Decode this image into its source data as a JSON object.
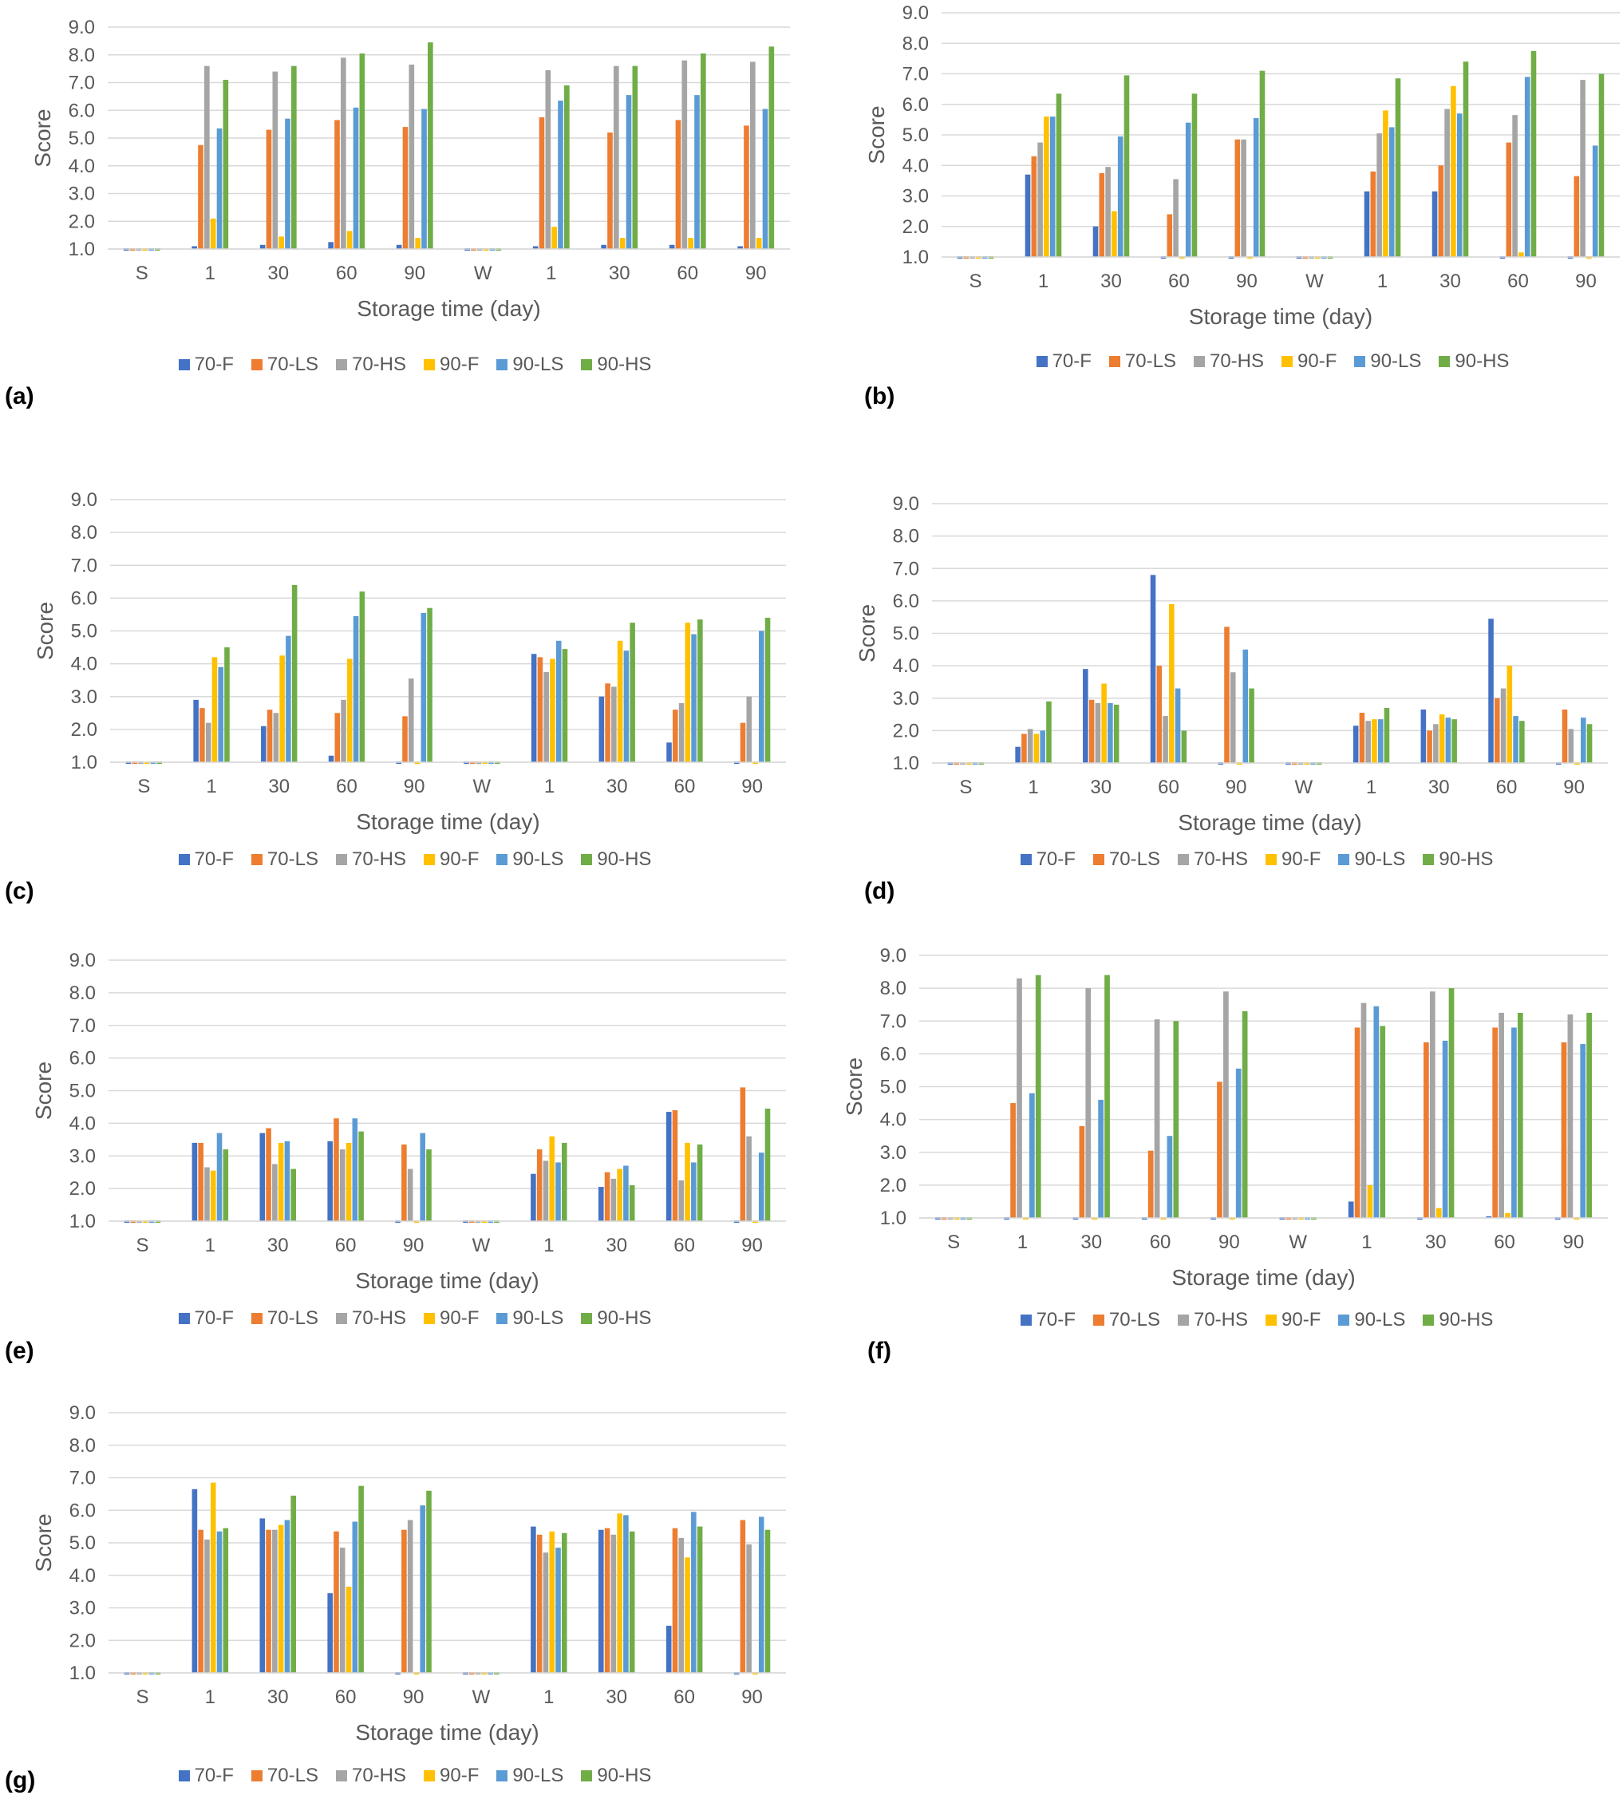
{
  "figure": {
    "colors": {
      "70-F": "#4472C4",
      "70-LS": "#ED7D31",
      "70-HS": "#A5A5A5",
      "90-F": "#FFC000",
      "90-LS": "#5B9BD5",
      "90-HS": "#70AD47"
    }
  },
  "chart_data": [
    {
      "panel_label": "(a)",
      "type": "bar",
      "categories": [
        "S",
        "1",
        "30",
        "60",
        "90",
        "W",
        "1",
        "30",
        "60",
        "90"
      ],
      "xlabel": "Storage time (day)",
      "ylabel": "Score",
      "ylim": [
        1.0,
        9.0
      ],
      "yticks": [
        "1.0",
        "2.0",
        "3.0",
        "4.0",
        "5.0",
        "6.0",
        "7.0",
        "8.0",
        "9.0"
      ],
      "grid": true,
      "legend_position": "bottom",
      "series": [
        {
          "name": "70-F",
          "values": [
            1.0,
            1.1,
            1.15,
            1.25,
            1.15,
            1.0,
            1.1,
            1.15,
            1.15,
            1.1
          ]
        },
        {
          "name": "70-LS",
          "values": [
            1.0,
            4.75,
            5.3,
            5.65,
            5.4,
            1.0,
            5.75,
            5.2,
            5.65,
            5.45
          ]
        },
        {
          "name": "70-HS",
          "values": [
            1.0,
            7.6,
            7.4,
            7.9,
            7.65,
            1.0,
            7.45,
            7.6,
            7.8,
            7.75
          ]
        },
        {
          "name": "90-F",
          "values": [
            1.0,
            2.1,
            1.45,
            1.65,
            1.4,
            1.0,
            1.8,
            1.4,
            1.4,
            1.4
          ]
        },
        {
          "name": "90-LS",
          "values": [
            1.0,
            5.35,
            5.7,
            6.1,
            6.05,
            1.0,
            6.35,
            6.55,
            6.55,
            6.05
          ]
        },
        {
          "name": "90-HS",
          "values": [
            1.0,
            7.1,
            7.6,
            8.05,
            8.45,
            1.0,
            6.9,
            7.6,
            8.05,
            8.3
          ]
        }
      ]
    },
    {
      "panel_label": "(b)",
      "type": "bar",
      "categories": [
        "S",
        "1",
        "30",
        "60",
        "90",
        "W",
        "1",
        "30",
        "60",
        "90"
      ],
      "xlabel": "Storage time (day)",
      "ylabel": "Score",
      "ylim": [
        1.0,
        9.0
      ],
      "yticks": [
        "1.0",
        "2.0",
        "3.0",
        "4.0",
        "5.0",
        "6.0",
        "7.0",
        "8.0",
        "9.0"
      ],
      "grid": true,
      "legend_position": "bottom",
      "series": [
        {
          "name": "70-F",
          "values": [
            1.0,
            3.7,
            2.0,
            1.05,
            1.0,
            1.0,
            3.15,
            3.15,
            1.05,
            1.0
          ]
        },
        {
          "name": "70-LS",
          "values": [
            1.0,
            4.3,
            3.75,
            2.4,
            4.85,
            1.0,
            3.8,
            4.0,
            4.75,
            3.65
          ]
        },
        {
          "name": "70-HS",
          "values": [
            1.0,
            4.75,
            3.95,
            3.55,
            4.85,
            1.0,
            5.05,
            5.85,
            5.65,
            6.8
          ]
        },
        {
          "name": "90-F",
          "values": [
            1.0,
            5.6,
            2.5,
            1.05,
            1.0,
            1.0,
            5.8,
            6.6,
            1.15,
            1.0
          ]
        },
        {
          "name": "90-LS",
          "values": [
            1.0,
            5.6,
            4.95,
            5.4,
            5.55,
            1.0,
            5.25,
            5.7,
            6.9,
            4.65
          ]
        },
        {
          "name": "90-HS",
          "values": [
            1.0,
            6.35,
            6.95,
            6.35,
            7.1,
            1.0,
            6.85,
            7.4,
            7.75,
            7.0
          ]
        }
      ]
    },
    {
      "panel_label": "(c)",
      "type": "bar",
      "categories": [
        "S",
        "1",
        "30",
        "60",
        "90",
        "W",
        "1",
        "30",
        "60",
        "90"
      ],
      "xlabel": "Storage time (day)",
      "ylabel": "Score",
      "ylim": [
        1.0,
        9.0
      ],
      "yticks": [
        "1.0",
        "2.0",
        "3.0",
        "4.0",
        "5.0",
        "6.0",
        "7.0",
        "8.0",
        "9.0"
      ],
      "grid": true,
      "legend_position": "bottom",
      "series": [
        {
          "name": "70-F",
          "values": [
            1.0,
            2.9,
            2.1,
            1.2,
            1.0,
            1.0,
            4.3,
            3.0,
            1.6,
            1.0
          ]
        },
        {
          "name": "70-LS",
          "values": [
            1.0,
            2.65,
            2.6,
            2.5,
            2.4,
            1.0,
            4.2,
            3.4,
            2.6,
            2.2
          ]
        },
        {
          "name": "70-HS",
          "values": [
            1.0,
            2.2,
            2.5,
            2.9,
            3.55,
            1.0,
            3.75,
            3.3,
            2.8,
            3.0
          ]
        },
        {
          "name": "90-F",
          "values": [
            1.0,
            4.2,
            4.25,
            4.15,
            1.0,
            1.0,
            4.15,
            4.7,
            5.25,
            1.0
          ]
        },
        {
          "name": "90-LS",
          "values": [
            1.0,
            3.9,
            4.85,
            5.45,
            5.55,
            1.0,
            4.7,
            4.4,
            4.9,
            5.0
          ]
        },
        {
          "name": "90-HS",
          "values": [
            1.0,
            4.5,
            6.4,
            6.2,
            5.7,
            1.0,
            4.45,
            5.25,
            5.35,
            5.4
          ]
        }
      ]
    },
    {
      "panel_label": "(d)",
      "type": "bar",
      "categories": [
        "S",
        "1",
        "30",
        "60",
        "90",
        "W",
        "1",
        "30",
        "60",
        "90"
      ],
      "xlabel": "Storage time (day)",
      "ylabel": "Score",
      "ylim": [
        1.0,
        9.0
      ],
      "yticks": [
        "1.0",
        "2.0",
        "3.0",
        "4.0",
        "5.0",
        "6.0",
        "7.0",
        "8.0",
        "9.0"
      ],
      "grid": true,
      "legend_position": "bottom",
      "series": [
        {
          "name": "70-F",
          "values": [
            1.0,
            1.5,
            3.9,
            6.8,
            1.0,
            1.0,
            2.15,
            2.65,
            5.45,
            1.0
          ]
        },
        {
          "name": "70-LS",
          "values": [
            1.0,
            1.9,
            2.95,
            4.0,
            5.2,
            1.0,
            2.55,
            2.0,
            3.0,
            2.65
          ]
        },
        {
          "name": "70-HS",
          "values": [
            1.0,
            2.05,
            2.85,
            2.45,
            3.8,
            1.0,
            2.3,
            2.2,
            3.3,
            2.05
          ]
        },
        {
          "name": "90-F",
          "values": [
            1.0,
            1.9,
            3.45,
            5.9,
            1.0,
            1.0,
            2.35,
            2.5,
            4.0,
            1.0
          ]
        },
        {
          "name": "90-LS",
          "values": [
            1.0,
            2.0,
            2.85,
            3.3,
            4.5,
            1.0,
            2.35,
            2.4,
            2.45,
            2.4
          ]
        },
        {
          "name": "90-HS",
          "values": [
            1.0,
            2.9,
            2.8,
            2.0,
            3.3,
            1.0,
            2.7,
            2.35,
            2.3,
            2.2
          ]
        }
      ]
    },
    {
      "panel_label": "(e)",
      "type": "bar",
      "categories": [
        "S",
        "1",
        "30",
        "60",
        "90",
        "W",
        "1",
        "30",
        "60",
        "90"
      ],
      "xlabel": "Storage time (day)",
      "ylabel": "Score",
      "ylim": [
        1.0,
        9.0
      ],
      "yticks": [
        "1.0",
        "2.0",
        "3.0",
        "4.0",
        "5.0",
        "6.0",
        "7.0",
        "8.0",
        "9.0"
      ],
      "grid": true,
      "legend_position": "bottom",
      "series": [
        {
          "name": "70-F",
          "values": [
            1.0,
            3.4,
            3.7,
            3.45,
            1.0,
            1.0,
            2.45,
            2.05,
            4.35,
            1.0
          ]
        },
        {
          "name": "70-LS",
          "values": [
            1.0,
            3.4,
            3.85,
            4.15,
            3.35,
            1.0,
            3.2,
            2.5,
            4.4,
            5.1
          ]
        },
        {
          "name": "70-HS",
          "values": [
            1.0,
            2.65,
            2.75,
            3.2,
            2.6,
            1.0,
            2.85,
            2.3,
            2.25,
            3.6
          ]
        },
        {
          "name": "90-F",
          "values": [
            1.0,
            2.55,
            3.4,
            3.4,
            1.0,
            1.0,
            3.6,
            2.6,
            3.4,
            1.0
          ]
        },
        {
          "name": "90-LS",
          "values": [
            1.0,
            3.7,
            3.45,
            4.15,
            3.7,
            1.0,
            2.8,
            2.7,
            2.8,
            3.1
          ]
        },
        {
          "name": "90-HS",
          "values": [
            1.0,
            3.2,
            2.6,
            3.75,
            3.2,
            1.0,
            3.4,
            2.1,
            3.35,
            4.45
          ]
        }
      ]
    },
    {
      "panel_label": "(f)",
      "type": "bar",
      "categories": [
        "S",
        "1",
        "30",
        "60",
        "90",
        "W",
        "1",
        "30",
        "60",
        "90"
      ],
      "xlabel": "Storage time (day)",
      "ylabel": "Score",
      "ylim": [
        1.0,
        9.0
      ],
      "yticks": [
        "1.0",
        "2.0",
        "3.0",
        "4.0",
        "5.0",
        "6.0",
        "7.0",
        "8.0",
        "9.0"
      ],
      "grid": true,
      "legend_position": "bottom",
      "series": [
        {
          "name": "70-F",
          "values": [
            1.0,
            1.0,
            1.0,
            1.0,
            1.0,
            1.0,
            1.5,
            1.0,
            1.05,
            1.0
          ]
        },
        {
          "name": "70-LS",
          "values": [
            1.0,
            4.5,
            3.8,
            3.05,
            5.15,
            1.0,
            6.8,
            6.35,
            6.8,
            6.35
          ]
        },
        {
          "name": "70-HS",
          "values": [
            1.0,
            8.3,
            8.0,
            7.05,
            7.9,
            1.0,
            7.55,
            7.9,
            7.25,
            7.2
          ]
        },
        {
          "name": "90-F",
          "values": [
            1.0,
            1.0,
            1.0,
            1.0,
            1.0,
            1.0,
            2.0,
            1.3,
            1.15,
            1.0
          ]
        },
        {
          "name": "90-LS",
          "values": [
            1.0,
            4.8,
            4.6,
            3.5,
            5.55,
            1.0,
            7.45,
            6.4,
            6.8,
            6.3
          ]
        },
        {
          "name": "90-HS",
          "values": [
            1.0,
            8.4,
            8.4,
            7.0,
            7.3,
            1.0,
            6.85,
            8.0,
            7.25,
            7.25
          ]
        }
      ]
    },
    {
      "panel_label": "(g)",
      "type": "bar",
      "categories": [
        "S",
        "1",
        "30",
        "60",
        "90",
        "W",
        "1",
        "30",
        "60",
        "90"
      ],
      "xlabel": "Storage time (day)",
      "ylabel": "Score",
      "ylim": [
        1.0,
        9.0
      ],
      "yticks": [
        "1.0",
        "2.0",
        "3.0",
        "4.0",
        "5.0",
        "6.0",
        "7.0",
        "8.0",
        "9.0"
      ],
      "grid": true,
      "legend_position": "bottom",
      "series": [
        {
          "name": "70-F",
          "values": [
            1.0,
            6.65,
            5.75,
            3.45,
            1.0,
            1.0,
            5.5,
            5.4,
            2.45,
            1.0
          ]
        },
        {
          "name": "70-LS",
          "values": [
            1.0,
            5.4,
            5.4,
            5.35,
            5.4,
            1.0,
            5.25,
            5.45,
            5.45,
            5.7
          ]
        },
        {
          "name": "70-HS",
          "values": [
            1.0,
            5.1,
            5.4,
            4.85,
            5.7,
            1.0,
            4.7,
            5.25,
            5.15,
            4.95
          ]
        },
        {
          "name": "90-F",
          "values": [
            1.0,
            6.85,
            5.55,
            3.65,
            1.0,
            1.0,
            5.35,
            5.9,
            4.55,
            1.0
          ]
        },
        {
          "name": "90-LS",
          "values": [
            1.0,
            5.35,
            5.7,
            5.65,
            6.15,
            1.0,
            4.85,
            5.85,
            5.95,
            5.8
          ]
        },
        {
          "name": "90-HS",
          "values": [
            1.0,
            5.45,
            6.45,
            6.75,
            6.6,
            1.0,
            5.3,
            5.35,
            5.5,
            5.4
          ]
        }
      ]
    }
  ]
}
